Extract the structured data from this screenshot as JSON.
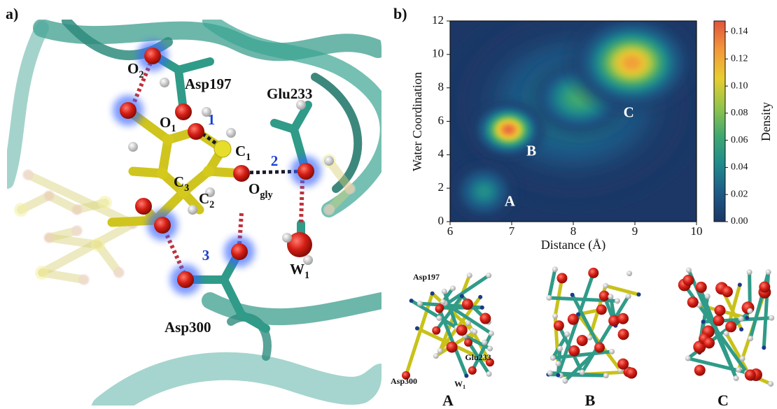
{
  "panel_a": {
    "label": "a)",
    "labels": [
      {
        "text": "O",
        "sub": "2"
      },
      "Asp197",
      "Glu233",
      {
        "text": "O",
        "sub": "1"
      },
      {
        "text": "C",
        "sub": "1"
      },
      {
        "text": "C",
        "sub": "3"
      },
      {
        "text": "C",
        "sub": "2"
      },
      {
        "text": "O",
        "sub": "gly"
      },
      {
        "text": "W",
        "sub": "1"
      },
      "Asp300"
    ],
    "interactions": [
      "1",
      "2",
      "3"
    ]
  },
  "panel_b": {
    "label": "b)"
  },
  "chart_data": {
    "type": "density",
    "xlabel": "Distance (Å)",
    "ylabel": "Water Coordination",
    "xlim": [
      6,
      10
    ],
    "xticks": [
      6,
      7,
      8,
      9,
      10
    ],
    "ylim": [
      0,
      12
    ],
    "yticks": [
      0,
      2,
      4,
      6,
      8,
      10,
      12
    ],
    "peaks": [
      {
        "label": null,
        "x": 8.0,
        "y": 7.0,
        "value": 0.045,
        "sx": 0.75,
        "sy": 2.2
      },
      {
        "label": "A",
        "x": 6.55,
        "y": 1.8,
        "value": 0.045,
        "sx": 0.22,
        "sy": 0.75
      },
      {
        "label": null,
        "x": 8.1,
        "y": 7.4,
        "value": 0.065,
        "sx": 0.35,
        "sy": 1.0
      },
      {
        "label": "C",
        "x": 8.95,
        "y": 9.5,
        "value": 0.125,
        "sx": 0.38,
        "sy": 1.1
      },
      {
        "label": "B",
        "x": 6.95,
        "y": 5.5,
        "value": 0.142,
        "sx": 0.22,
        "sy": 0.65
      }
    ],
    "colorbar": {
      "label": "Density",
      "clim": [
        0,
        0.148
      ],
      "ticks": [
        {
          "value": 0,
          "label": "0.00"
        },
        {
          "value": 0.02,
          "label": "0.02"
        },
        {
          "value": 0.04,
          "label": "0.04"
        },
        {
          "value": 0.06,
          "label": "0.06"
        },
        {
          "value": 0.08,
          "label": "0.08"
        },
        {
          "value": 0.1,
          "label": "0.10"
        },
        {
          "value": 0.12,
          "label": "0.12"
        },
        {
          "value": 0.14,
          "label": "0.14"
        }
      ],
      "colormap": [
        "#1c3766",
        "#1d5a87",
        "#1f8a8c",
        "#3fa870",
        "#93c44a",
        "#e8cd30",
        "#f3983a",
        "#e0533c"
      ]
    }
  },
  "snapshots": [
    {
      "caption": "A",
      "labels": [
        "Asp197",
        "Glu233",
        {
          "text": "W",
          "sub": "1"
        },
        "Asp300"
      ]
    },
    {
      "caption": "B"
    },
    {
      "caption": "C"
    }
  ]
}
